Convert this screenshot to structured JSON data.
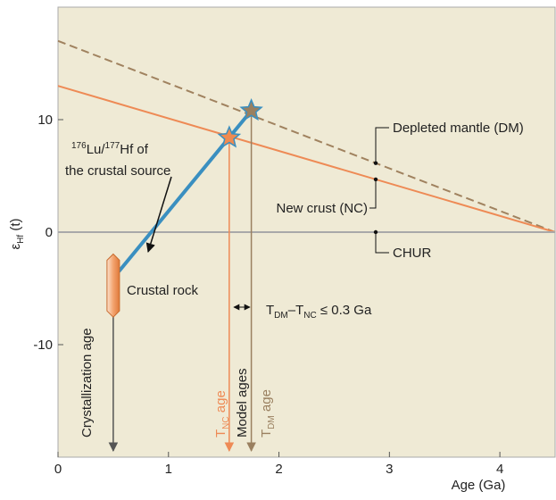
{
  "chart_data": {
    "type": "line",
    "x_label": "Age (Ga)",
    "y_label": [
      "ε",
      "Hf",
      " (t)"
    ],
    "xlim": [
      0,
      4.5
    ],
    "ylim": [
      -20,
      20
    ],
    "xticks": [
      0,
      1,
      2,
      3,
      4
    ],
    "yticks": [
      -10,
      0,
      10
    ],
    "series": [
      {
        "name": "Depleted mantle (DM)",
        "color": "#a0825f",
        "dashed": true,
        "x": [
          0,
          4.5
        ],
        "values": [
          17,
          0
        ]
      },
      {
        "name": "New crust (NC)",
        "color": "#ee8a55",
        "x": [
          0,
          4.5
        ],
        "values": [
          13,
          0
        ]
      },
      {
        "name": "CHUR",
        "color": "#a9a9a9",
        "x": [
          0,
          4.5
        ],
        "values": [
          0,
          0
        ]
      },
      {
        "color": "#3a8fc0",
        "x": [
          0.55,
          1.75
        ],
        "values": [
          -3.5,
          10.8
        ]
      }
    ],
    "points": [
      {
        "x": 1.55,
        "y": 8.4,
        "color": "#f08a50"
      },
      {
        "x": 1.75,
        "y": 10.8,
        "color": "#9a8060"
      }
    ],
    "rock": {
      "x": 0.5,
      "top": -2.5,
      "bottom": -7
    },
    "ages": [
      {
        "x": 0.5,
        "color": "#555555"
      },
      {
        "x": 1.55,
        "color": "#ee8a55"
      },
      {
        "x": 1.75,
        "color": "#9a8060"
      }
    ],
    "annotations": {
      "lu_hf": [
        "176",
        "Lu/",
        "177",
        "Hf of"
      ],
      "lu_hf_2": "the crustal source",
      "crustal_rock": "Crustal rock",
      "model_ages": "Model ages",
      "difference": [
        "T",
        "DM",
        "–T",
        "NC",
        " ≤ 0.3 Ga"
      ],
      "crystallization_age": "Crystallization age",
      "tnc_age": [
        "T",
        "NC",
        " age"
      ],
      "tdm_age": [
        "T",
        "DM",
        " age"
      ]
    }
  }
}
